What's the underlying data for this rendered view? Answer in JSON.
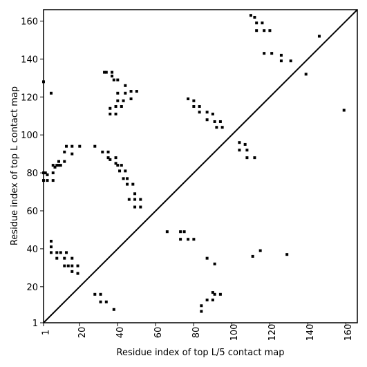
{
  "chart_data": {
    "type": "scatter",
    "xlabel": "Residue index of top L/5 contact map",
    "ylabel": "Residue index of top L contact map",
    "xlim": [
      1,
      166
    ],
    "ylim": [
      1,
      166
    ],
    "xticks": [
      1,
      20,
      40,
      60,
      80,
      100,
      120,
      140,
      160
    ],
    "yticks": [
      1,
      20,
      40,
      60,
      80,
      100,
      120,
      140,
      160
    ],
    "diagonal": true,
    "color": "#000000",
    "x": [
      1,
      5,
      1,
      2,
      3,
      1,
      3,
      6,
      6,
      6,
      7,
      8,
      9,
      10,
      9,
      12,
      12,
      13,
      16,
      16,
      20,
      5,
      5,
      5,
      8,
      10,
      13,
      8,
      12,
      16,
      12,
      14,
      16,
      19,
      16,
      19,
      28,
      31,
      31,
      34,
      38,
      28,
      32,
      35,
      35,
      36,
      39,
      39,
      40,
      42,
      41,
      44,
      43,
      45,
      45,
      48,
      46,
      49,
      49,
      52,
      49,
      52,
      33,
      34,
      37,
      37,
      38,
      40,
      36,
      36,
      39,
      39,
      40,
      43,
      44,
      44,
      47,
      50,
      47,
      40,
      42,
      77,
      80,
      80,
      83,
      83,
      87,
      87,
      90,
      91,
      92,
      94,
      95,
      104,
      104,
      107,
      108,
      108,
      112,
      110,
      112,
      113,
      113,
      116,
      117,
      120,
      117,
      121,
      126,
      126,
      131,
      139,
      146,
      159,
      66,
      73,
      75,
      73,
      77,
      80,
      87,
      91,
      84,
      84,
      87,
      90,
      90,
      91,
      94,
      111,
      115,
      129
    ],
    "y": [
      128,
      122,
      80,
      80,
      79,
      76,
      76,
      80,
      76,
      84,
      83,
      84,
      86,
      84,
      84,
      91,
      86,
      94,
      94,
      90,
      94,
      44,
      41,
      38,
      38,
      38,
      38,
      35,
      35,
      35,
      31,
      31,
      31,
      31,
      28,
      27,
      16,
      16,
      12,
      12,
      8,
      94,
      91,
      91,
      88,
      87,
      88,
      85,
      84,
      84,
      81,
      81,
      77,
      77,
      74,
      74,
      66,
      66,
      69,
      66,
      62,
      62,
      133,
      133,
      133,
      131,
      129,
      129,
      114,
      111,
      111,
      115,
      118,
      118,
      122,
      126,
      123,
      123,
      119,
      122,
      115,
      119,
      118,
      115,
      112,
      115,
      108,
      112,
      111,
      107,
      104,
      107,
      104,
      96,
      92,
      95,
      92,
      88,
      88,
      163,
      162,
      159,
      155,
      159,
      155,
      155,
      143,
      143,
      142,
      139,
      139,
      132,
      152,
      113,
      49,
      49,
      49,
      45,
      45,
      45,
      35,
      32,
      10,
      7,
      13,
      13,
      17,
      16,
      16,
      36,
      39,
      37
    ]
  }
}
